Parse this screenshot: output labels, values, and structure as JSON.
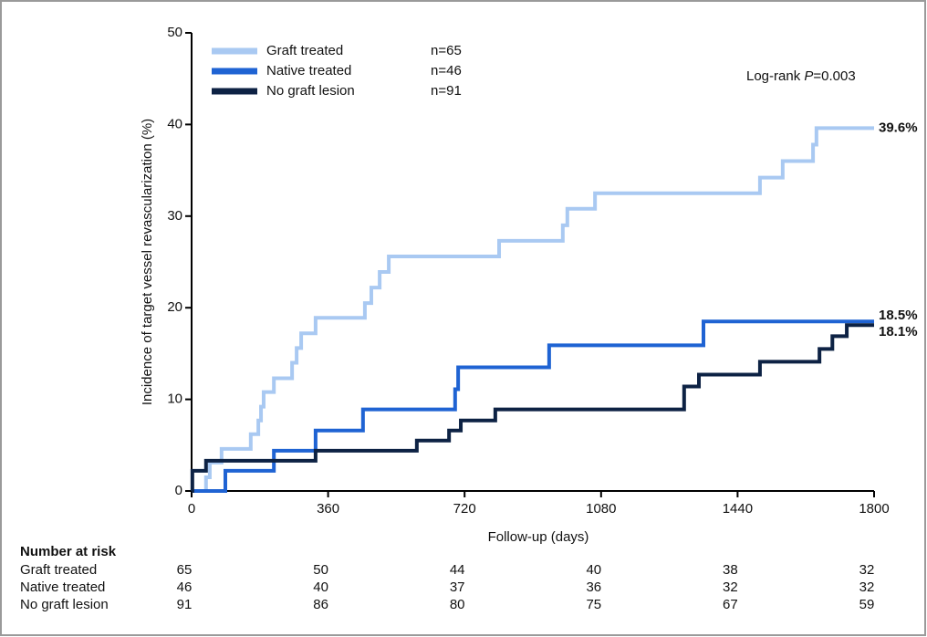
{
  "chart_data": {
    "type": "step-line",
    "x_label": "Follow-up (days)",
    "y_label": "Incidence of target vessel revascularization (%)",
    "xlim": [
      0,
      1800
    ],
    "xticks": [
      0,
      360,
      720,
      1080,
      1440,
      1800
    ],
    "ylim": [
      0,
      50
    ],
    "yticks": [
      0,
      10,
      20,
      30,
      40,
      50
    ],
    "legend_position": "upper left",
    "annotation": [
      "Log-rank ",
      "P",
      "=0.003"
    ],
    "series": [
      {
        "name": "Graft treated",
        "n_label": "n=65",
        "color": "#a9c9f2",
        "end_label": "39.6%",
        "x": [
          0,
          38,
          48,
          79,
          156,
          176,
          183,
          190,
          217,
          265,
          277,
          289,
          327,
          457,
          474,
          496,
          520,
          811,
          979,
          991,
          1064,
          1499,
          1559,
          1639,
          1648,
          1800
        ],
        "values": [
          0,
          1.5,
          3.1,
          4.6,
          6.2,
          7.7,
          9.2,
          10.8,
          12.3,
          14.0,
          15.6,
          17.2,
          18.9,
          20.5,
          22.2,
          23.9,
          25.6,
          27.3,
          29.0,
          30.8,
          32.5,
          34.2,
          36.0,
          37.8,
          39.6,
          39.6
        ]
      },
      {
        "name": "Native treated",
        "n_label": "n=46",
        "color": "#1f63d3",
        "end_label": "18.5%",
        "x": [
          0,
          89,
          217,
          327,
          452,
          695,
          703,
          943,
          1350,
          1800
        ],
        "values": [
          0,
          2.2,
          4.4,
          6.6,
          8.9,
          11.1,
          13.5,
          15.9,
          18.5,
          18.5
        ]
      },
      {
        "name": "No graft lesion",
        "n_label": "n=91",
        "color": "#0d2244",
        "end_label": "18.1%",
        "x": [
          0,
          2,
          38,
          327,
          594,
          679,
          710,
          801,
          1299,
          1338,
          1499,
          1656,
          1690,
          1728,
          1800
        ],
        "values": [
          0,
          2.2,
          3.3,
          4.4,
          5.5,
          6.6,
          7.7,
          8.9,
          11.4,
          12.7,
          14.1,
          15.5,
          16.9,
          18.1,
          18.1
        ]
      }
    ]
  },
  "risk_table": {
    "title": "Number at risk",
    "rows": [
      {
        "label": "Graft treated",
        "values": [
          65,
          50,
          44,
          40,
          38,
          32
        ]
      },
      {
        "label": "Native treated",
        "values": [
          46,
          40,
          37,
          36,
          32,
          32
        ]
      },
      {
        "label": "No graft lesion",
        "values": [
          91,
          86,
          80,
          75,
          67,
          59
        ]
      }
    ]
  }
}
